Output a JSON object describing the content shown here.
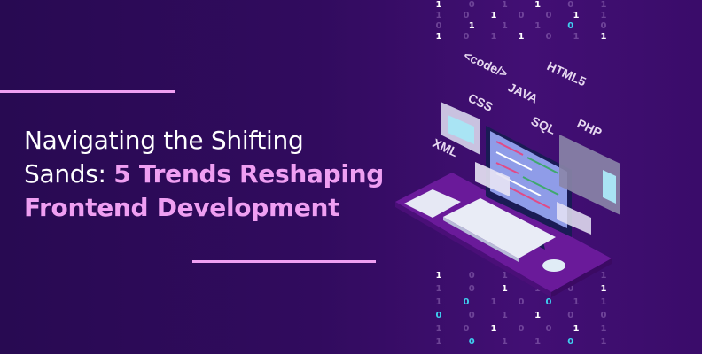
{
  "title": {
    "line1": "Navigating the Shifting",
    "line2_plain": "Sands: ",
    "line2_highlight": "5 Trends Reshaping",
    "line3": "Frontend Development"
  },
  "colors": {
    "accent": "#ef9ff2",
    "background": "#310b5e",
    "binary_bright": "#3fd0f0"
  },
  "illustration": {
    "tech_labels": [
      "<code/>",
      "HTML5",
      "CSS",
      "JAVA",
      "SQL",
      "PHP",
      "XML"
    ],
    "binary_rows_top": [
      "1 0 1 1 0 1",
      "1 0 1 0 0 1 1",
      "0 1 1 1 0 0",
      "1 0 1 1 0 1 1"
    ],
    "binary_rows_bottom": [
      "1 0 1 1 1 1",
      "1 0 1 1 0 1",
      "1 0 1 0 0 1 1",
      "0 0 1 1 0 0",
      "1 0 1 0 0 1 1",
      "1 0 1 1 0 1"
    ]
  }
}
